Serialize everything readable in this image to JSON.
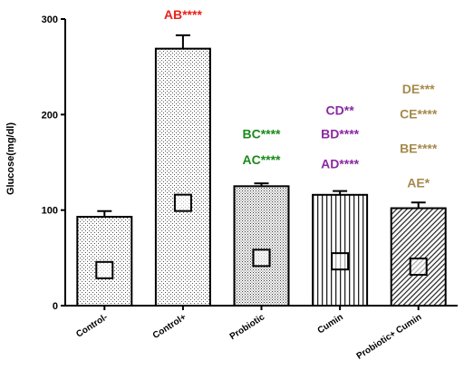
{
  "chart_data": {
    "type": "bar",
    "ylabel": "Glucose(mg/dl)",
    "xlabel": "",
    "title": "",
    "ylim": [
      0,
      300
    ],
    "yticks": [
      0,
      100,
      200,
      300
    ],
    "grid": false,
    "categories": [
      "Control-",
      "Control+",
      "Probiotic",
      "Cumin",
      "Probiotic+ Cumin"
    ],
    "values": [
      93,
      269,
      125,
      116,
      102
    ],
    "errors": [
      6,
      14,
      3,
      4,
      6
    ],
    "patterns": [
      "dots",
      "dots",
      "dense-dots",
      "vertical-lines",
      "diagonal-lines"
    ],
    "annotations": [
      {
        "text": "AB****",
        "color": "#e8211b",
        "category": "Control+",
        "y": 300
      },
      {
        "text": "BC****",
        "color": "#1a8a1a",
        "category": "Probiotic",
        "y": 175
      },
      {
        "text": "AC****",
        "color": "#1a8a1a",
        "category": "Probiotic",
        "y": 148
      },
      {
        "text": "CD**",
        "color": "#8a2aa0",
        "category": "Cumin",
        "y": 200
      },
      {
        "text": "BD****",
        "color": "#8a2aa0",
        "category": "Cumin",
        "y": 175
      },
      {
        "text": "AD****",
        "color": "#8a2aa0",
        "category": "Cumin",
        "y": 144
      },
      {
        "text": "DE***",
        "color": "#a68a4c",
        "category": "Probiotic+ Cumin",
        "y": 222
      },
      {
        "text": "CE****",
        "color": "#a68a4c",
        "category": "Probiotic+ Cumin",
        "y": 196
      },
      {
        "text": "BE****",
        "color": "#a68a4c",
        "category": "Probiotic+ Cumin",
        "y": 160
      },
      {
        "text": "AE*",
        "color": "#a68a4c",
        "category": "Probiotic+ Cumin",
        "y": 124
      }
    ]
  }
}
